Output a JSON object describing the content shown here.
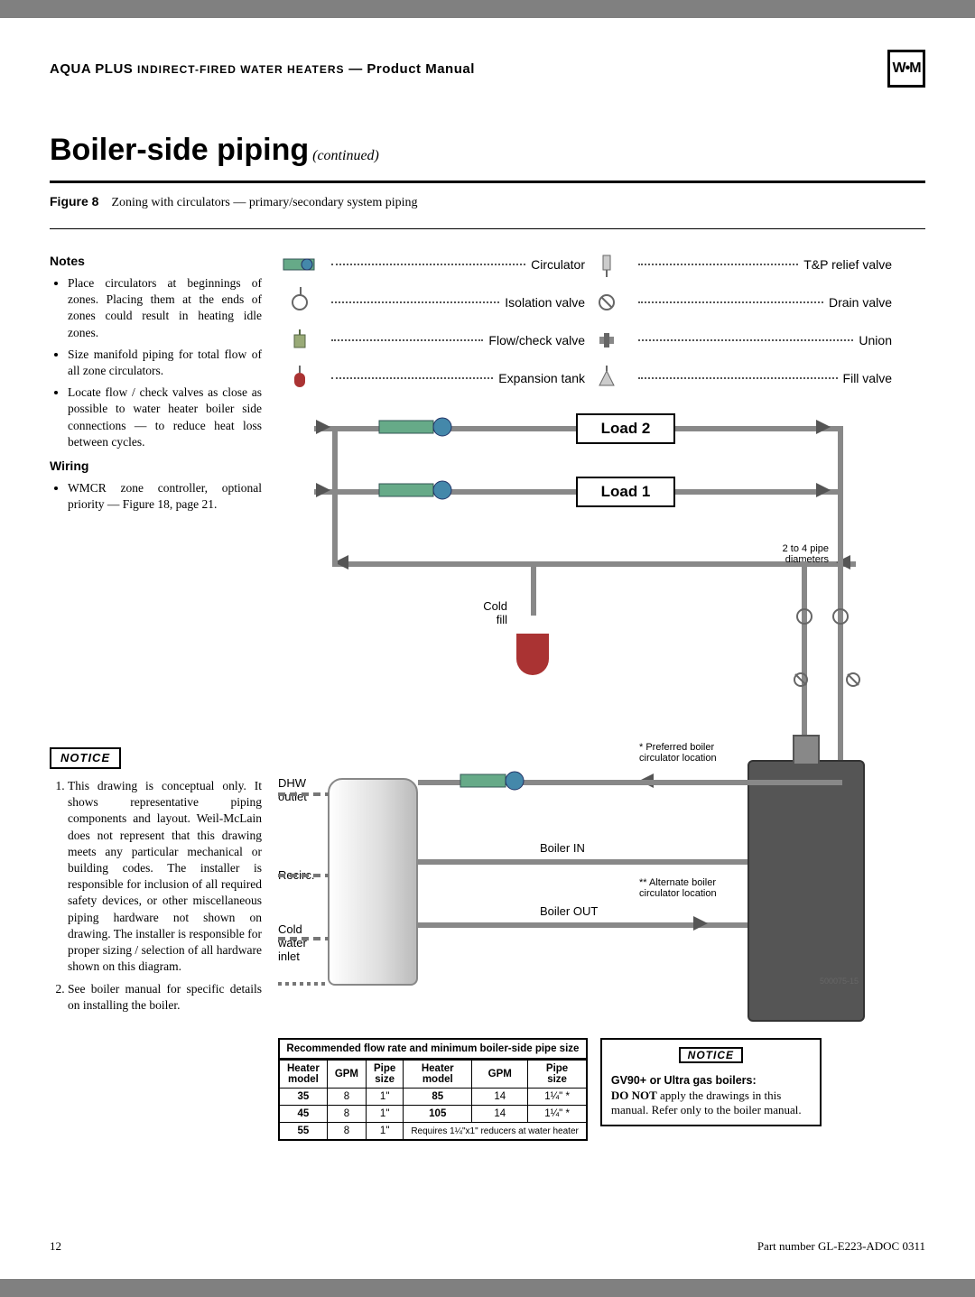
{
  "header": {
    "brand": "AQUA PLUS",
    "product_line": "INDIRECT-FIRED WATER HEATERS",
    "doc_type": "Product Manual",
    "logo_text": "W•M"
  },
  "section": {
    "title": "Boiler-side piping",
    "continued": " (continued)"
  },
  "figure": {
    "label": "Figure 8",
    "caption": "Zoning with circulators — primary/secondary system piping"
  },
  "notes": {
    "heading": "Notes",
    "items": [
      "Place circulators at beginnings of zones. Placing them at the ends of zones could result in heating idle zones.",
      "Size manifold piping for total flow of all zone circulators.",
      "Locate flow / check valves as close as possible to water heater boiler side connections — to reduce heat loss between cycles."
    ]
  },
  "wiring": {
    "heading": "Wiring",
    "items": [
      "WMCR zone controller, optional priority — Figure 18, page 21."
    ]
  },
  "notice_left": {
    "label": "NOTICE",
    "items": [
      "This drawing is conceptual only. It shows representative piping components and layout. Weil-McLain does not represent that this drawing meets any particular mechanical or building codes. The installer is responsible for inclusion of all required safety devices, or other miscellaneous piping hardware not shown on drawing. The installer is responsible for proper sizing / selection of all hardware shown on this diagram.",
      "See boiler manual for specific details on installing the boiler."
    ]
  },
  "legend": {
    "left": [
      {
        "name": "circulator-icon",
        "label": "Circulator"
      },
      {
        "name": "isolation-valve-icon",
        "label": "Isolation valve"
      },
      {
        "name": "flow-check-valve-icon",
        "label": "Flow/check valve"
      },
      {
        "name": "expansion-tank-icon",
        "label": "Expansion tank"
      }
    ],
    "right": [
      {
        "name": "tp-relief-valve-icon",
        "label": "T&P relief valve"
      },
      {
        "name": "drain-valve-icon",
        "label": "Drain valve"
      },
      {
        "name": "union-icon",
        "label": "Union"
      },
      {
        "name": "fill-valve-icon",
        "label": "Fill valve"
      }
    ]
  },
  "diagram": {
    "loads": [
      "Load 2",
      "Load 1"
    ],
    "labels": {
      "cold_fill": "Cold\nfill",
      "dhw_outlet": "DHW\noutlet",
      "recirc": "Recirc.",
      "cold_water_inlet": "Cold\nwater\ninlet",
      "boiler_in": "Boiler IN",
      "boiler_out": "Boiler OUT",
      "pipe_note": "2 to 4 pipe\ndiameters",
      "pref_loc": "* Preferred boiler\ncirculator location",
      "alt_loc": "** Alternate boiler\ncirculator location",
      "partno": "500075-15"
    }
  },
  "flow_table": {
    "caption": "Recommended flow rate and minimum boiler-side pipe size",
    "headers": [
      "Heater\nmodel",
      "GPM",
      "Pipe\nsize",
      "Heater\nmodel",
      "GPM",
      "Pipe\nsize"
    ],
    "rows": [
      [
        "35",
        "8",
        "1\"",
        "85",
        "14",
        "1¼\" *"
      ],
      [
        "45",
        "8",
        "1\"",
        "105",
        "14",
        "1¼\" *"
      ],
      [
        "55",
        "8",
        "1\"",
        "Requires 1¼\"x1\" reducers at water heater",
        "",
        ""
      ]
    ],
    "footnote_colspan": 3
  },
  "notice_right": {
    "label": "NOTICE",
    "title": "GV90+ or Ultra gas boilers:",
    "body": "DO NOT apply the drawings in this manual. Refer only to the boiler manual.",
    "bold_lead": "DO NOT"
  },
  "footer": {
    "page": "12",
    "part": "Part number GL-E223-ADOC 0311"
  },
  "colors": {
    "pipe": "#888888",
    "text": "#000000",
    "exp_tank": "#a33333"
  }
}
